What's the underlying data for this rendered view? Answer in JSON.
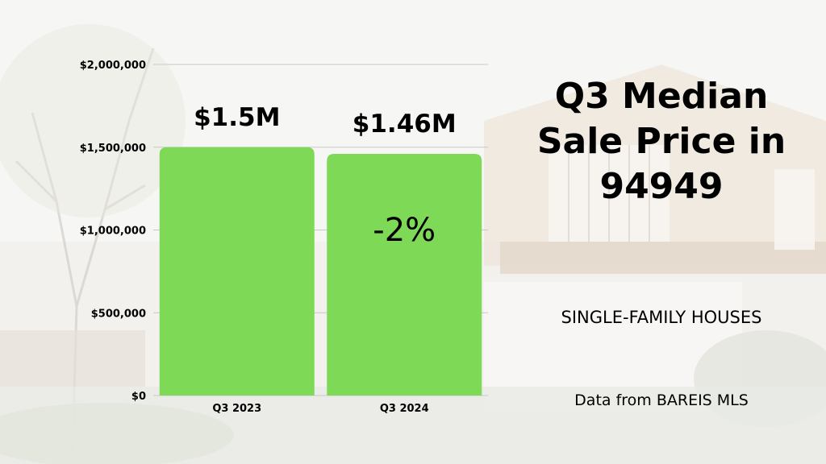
{
  "title": "Q3 Median Sale Price in 94949",
  "subtitle": "SINGLE-FAMILY HOUSES",
  "source": "Data from BAREIS MLS",
  "colors": {
    "bar": "#7ed957",
    "text": "#000000",
    "grid": "#c8c8c8"
  },
  "chart_data": {
    "type": "bar",
    "categories": [
      "Q3 2023",
      "Q3 2024"
    ],
    "values": [
      1500000,
      1460000
    ],
    "data_labels": [
      "$1.5M",
      "$1.46M"
    ],
    "annotations": [
      {
        "category": "Q3 2024",
        "text": "-2%"
      }
    ],
    "yticks": [
      0,
      500000,
      1000000,
      1500000,
      2000000
    ],
    "ytick_labels": [
      "$0",
      "$500,000",
      "$1,000,000",
      "$1,500,000",
      "$2,000,000"
    ],
    "ylim": [
      0,
      2000000
    ],
    "grid": true,
    "title": "Q3 Median Sale Price in 94949",
    "xlabel": "",
    "ylabel": ""
  }
}
